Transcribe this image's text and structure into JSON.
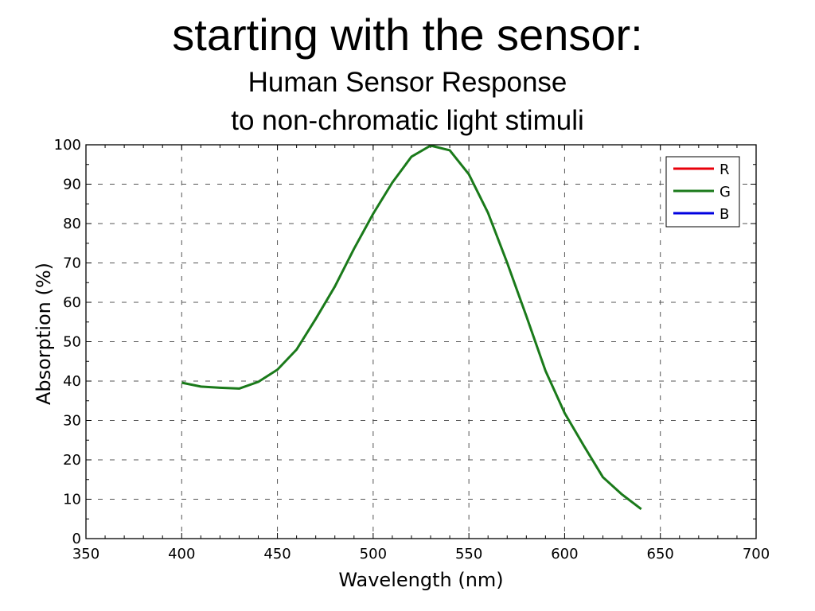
{
  "slide": {
    "title": "starting with the sensor:",
    "subtitle_line1": "Human Sensor Response",
    "subtitle_line2": "to non-chromatic light stimuli"
  },
  "chart_data": {
    "type": "line",
    "xlabel": "Wavelength (nm)",
    "ylabel": "Absorption (%)",
    "xlim": [
      350,
      700
    ],
    "ylim": [
      0,
      100
    ],
    "xticks": [
      350,
      400,
      450,
      500,
      550,
      600,
      650,
      700
    ],
    "yticks": [
      0,
      10,
      20,
      30,
      40,
      50,
      60,
      70,
      80,
      90,
      100
    ],
    "grid": true,
    "legend_position": "top-right",
    "series": [
      {
        "name": "R",
        "color": "#e8000b",
        "x": [],
        "y": []
      },
      {
        "name": "G",
        "color": "#1a7a1a",
        "x": [
          400,
          410,
          420,
          430,
          440,
          450,
          460,
          470,
          480,
          490,
          500,
          510,
          520,
          530,
          540,
          550,
          560,
          570,
          580,
          590,
          600,
          610,
          620,
          630,
          640
        ],
        "y": [
          39.6,
          38.6,
          38.3,
          38.1,
          39.8,
          42.9,
          48.0,
          55.8,
          64.0,
          73.6,
          82.5,
          90.4,
          97.0,
          99.8,
          98.6,
          92.5,
          82.7,
          70.0,
          56.5,
          42.6,
          31.9,
          23.6,
          15.6,
          11.2,
          7.5
        ]
      },
      {
        "name": "B",
        "color": "#0000e0",
        "x": [],
        "y": []
      }
    ]
  }
}
